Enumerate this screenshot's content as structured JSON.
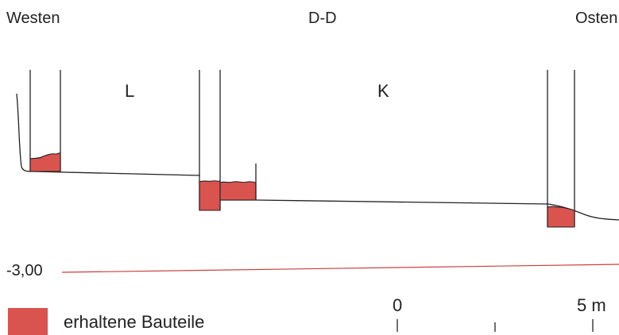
{
  "header": {
    "west": "Westen",
    "section": "D-D",
    "east": "Osten"
  },
  "rooms": {
    "left": "L",
    "right": "K"
  },
  "level": {
    "label": "-3,00",
    "color": "#c94040"
  },
  "scale": {
    "start": "0",
    "end": "5 m"
  },
  "legend": {
    "label": "erhaltene Bauteile",
    "color": "#d9534f"
  }
}
